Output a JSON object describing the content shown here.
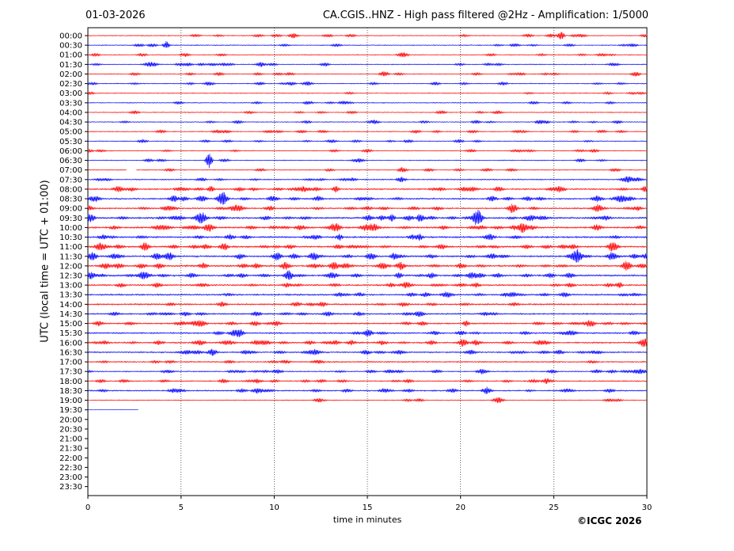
{
  "header": {
    "date": "01-03-2026",
    "title": "CA.CGIS..HNZ - High pass filtered @2Hz - Amplification: 1/5000"
  },
  "footer": {
    "copyright": "©ICGC 2026"
  },
  "chart_data": {
    "type": "line",
    "subtype": "helicorder",
    "xlabel": "time in minutes",
    "ylabel": "UTC (local time = UTC + 01:00)",
    "xlim": [
      0,
      30
    ],
    "x_ticks": [
      0,
      5,
      10,
      15,
      20,
      25,
      30
    ],
    "x_grid": "dotted vertical lines at 5,10,15,20,25",
    "row_labels": [
      "00:00",
      "00:30",
      "01:00",
      "01:30",
      "02:00",
      "02:30",
      "03:00",
      "03:30",
      "04:00",
      "04:30",
      "05:00",
      "05:30",
      "06:00",
      "06:30",
      "07:00",
      "07:30",
      "08:00",
      "08:30",
      "09:00",
      "09:30",
      "10:00",
      "10:30",
      "11:00",
      "11:30",
      "12:00",
      "12:30",
      "13:00",
      "13:30",
      "14:00",
      "14:30",
      "15:00",
      "15:30",
      "16:00",
      "16:30",
      "17:00",
      "17:30",
      "18:00",
      "18:30",
      "19:00",
      "19:30",
      "20:00",
      "20:30",
      "21:00",
      "21:30",
      "22:00",
      "22:30",
      "23:00",
      "23:30"
    ],
    "trace_colors": [
      "#ff0000",
      "#0000ff"
    ],
    "color_rule": "alternating red/blue starting with red at 00:00",
    "rows_with_data_through": "19:30",
    "last_row_end_minutes": 2.7,
    "gap": {
      "row": "07:00",
      "from_minutes": 2.1,
      "to_minutes": 2.6
    },
    "notable_events": [
      {
        "row": "00:00",
        "minute": 25.4,
        "amplitude": 5
      },
      {
        "row": "00:30",
        "minute": 4.2,
        "amplitude": 5
      },
      {
        "row": "04:30",
        "minute": 24.2,
        "amplitude": 3
      },
      {
        "row": "06:30",
        "minute": 6.5,
        "amplitude": 10
      },
      {
        "row": "08:00",
        "minute": 6.6,
        "amplitude": 4
      },
      {
        "row": "08:00",
        "minute": 13.3,
        "amplitude": 4
      },
      {
        "row": "08:00",
        "minute": 29.9,
        "amplitude": 4
      },
      {
        "row": "09:30",
        "minute": 16.3,
        "amplitude": 5
      },
      {
        "row": "09:30",
        "minute": 17.8,
        "amplitude": 4
      },
      {
        "row": "10:30",
        "minute": 13.5,
        "amplitude": 4
      },
      {
        "row": "10:30",
        "minute": 17.8,
        "amplitude": 4
      },
      {
        "row": "11:30",
        "minute": 16.4,
        "amplitude": 4
      },
      {
        "row": "12:30",
        "minute": 16.7,
        "amplitude": 4
      },
      {
        "row": "13:00",
        "minute": 28.5,
        "amplitude": 4
      },
      {
        "row": "15:00",
        "minute": 20.3,
        "amplitude": 4
      },
      {
        "row": "15:30",
        "minute": 8.2,
        "amplitude": 4
      },
      {
        "row": "16:00",
        "minute": 29.9,
        "amplitude": 4
      }
    ],
    "noise_level_by_row": [
      1,
      1,
      1,
      1,
      1,
      1,
      1,
      1,
      1,
      1,
      1,
      1,
      1,
      1,
      1,
      1.3,
      1.6,
      1.6,
      1.6,
      1.8,
      1.8,
      1.8,
      1.8,
      1.8,
      1.8,
      1.8,
      1.7,
      1.7,
      1.7,
      1.6,
      1.6,
      1.6,
      1.6,
      1.5,
      1.4,
      1.2,
      1.3,
      1.4,
      1,
      0.3,
      0,
      0,
      0,
      0,
      0,
      0,
      0,
      0
    ]
  }
}
